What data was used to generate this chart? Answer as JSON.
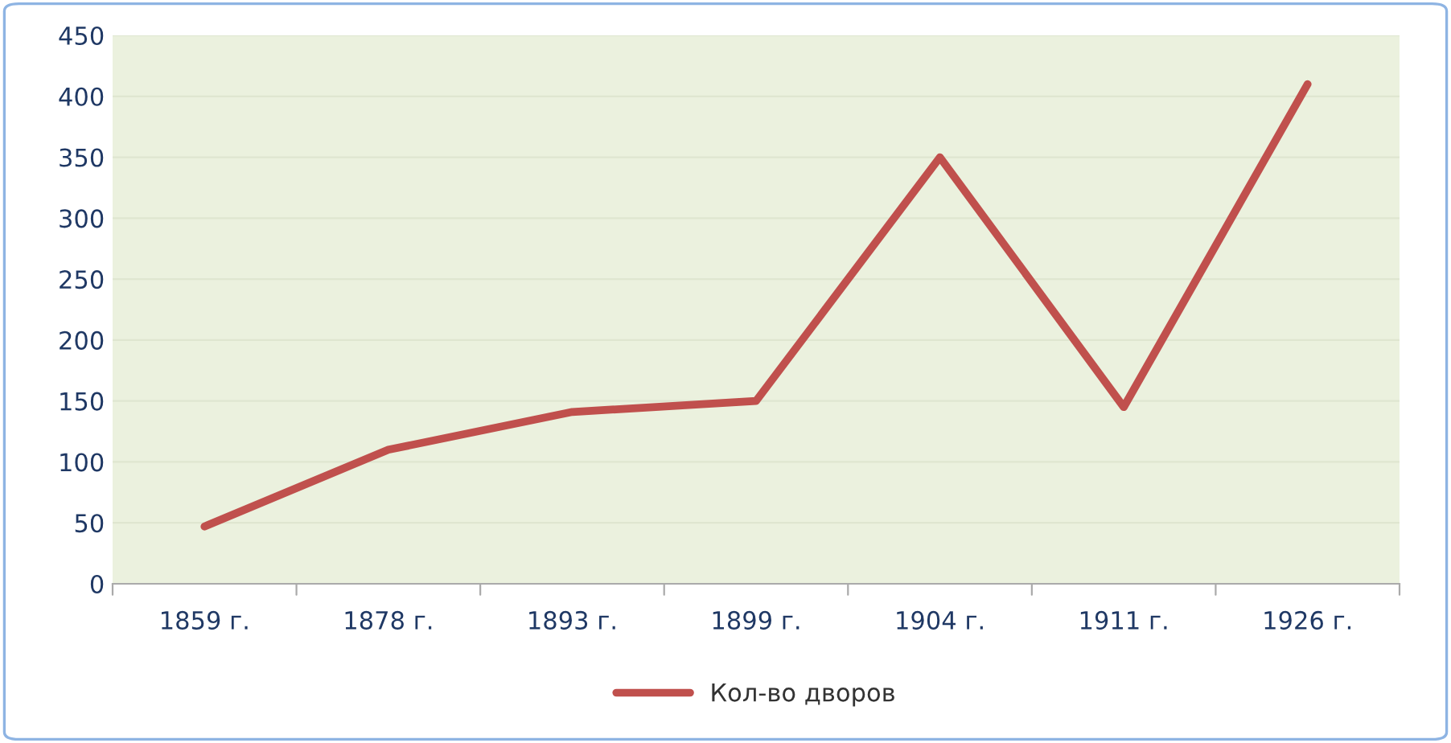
{
  "chart_data": {
    "type": "line",
    "categories": [
      "1859 г.",
      "1878 г.",
      "1893 г.",
      "1899 г.",
      "1904 г.",
      "1911 г.",
      "1926 г."
    ],
    "series": [
      {
        "name": "Кол-во дворов",
        "color": "#c0504d",
        "values": [
          47,
          110,
          141,
          150,
          350,
          145,
          410
        ]
      }
    ],
    "ylim": [
      0,
      450
    ],
    "yticks": [
      0,
      50,
      100,
      150,
      200,
      250,
      300,
      350,
      400,
      450
    ],
    "grid": "y",
    "legend": "bottom",
    "marker": "none",
    "line_style": "solid"
  }
}
